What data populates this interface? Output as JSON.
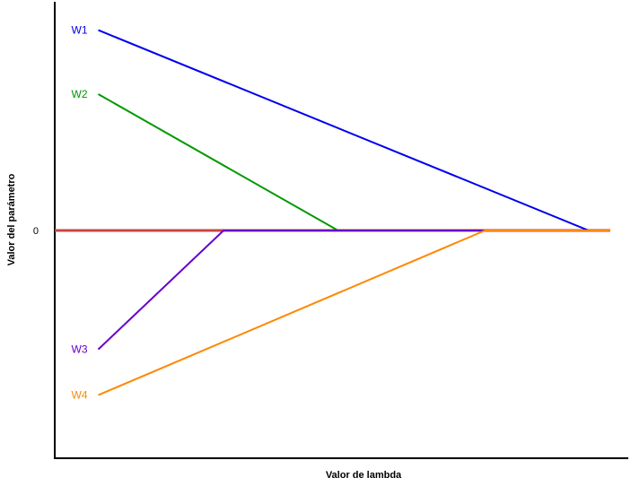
{
  "chart_data": {
    "type": "line",
    "title": "",
    "xlabel": "Valor de lambda",
    "ylabel": "Valor del parámetro",
    "xlim": [
      -0.8,
      9.4
    ],
    "ylim": [
      -5.0,
      5.0
    ],
    "yticks": [
      {
        "value": 0,
        "label": "0"
      }
    ],
    "xticks": [],
    "grid": false,
    "legend": "none",
    "zero_line_color": "#cc4444",
    "series": [
      {
        "name": "W1",
        "color": "#0000ee",
        "points": [
          [
            0,
            4.38
          ],
          [
            9.0,
            0
          ],
          [
            10.2,
            0
          ]
        ]
      },
      {
        "name": "W2",
        "color": "#009900",
        "points": [
          [
            0,
            2.98
          ],
          [
            4.4,
            0
          ],
          [
            10.2,
            0
          ]
        ]
      },
      {
        "name": "W3",
        "color": "#6600cc",
        "points": [
          [
            0,
            -2.6
          ],
          [
            2.3,
            0
          ],
          [
            10.2,
            0
          ]
        ]
      },
      {
        "name": "W4",
        "color": "#ff8800",
        "points": [
          [
            0,
            -3.6
          ],
          [
            7.1,
            0
          ],
          [
            10.2,
            0
          ]
        ]
      }
    ]
  }
}
